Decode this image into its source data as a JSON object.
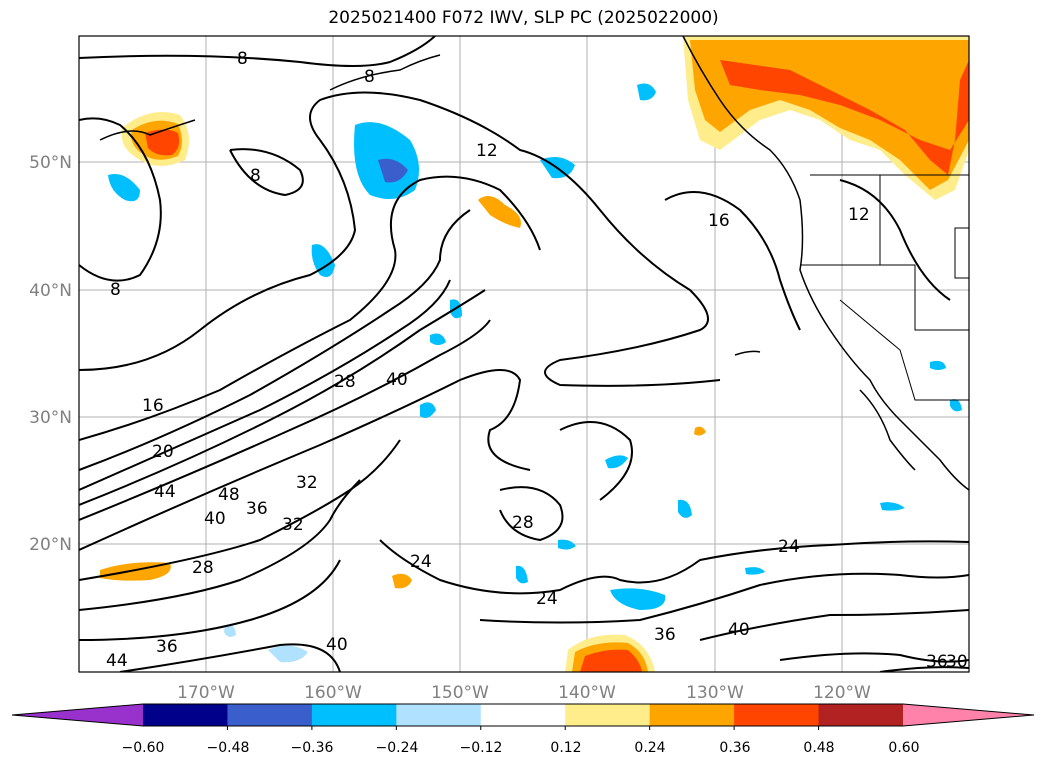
{
  "title": "2025021400 F072 IWV, SLP PC (2025022000)",
  "map": {
    "lon_ticks": [
      "170°W",
      "160°W",
      "150°W",
      "140°W",
      "130°W",
      "120°W"
    ],
    "lat_ticks": [
      "50°N",
      "40°N",
      "30°N",
      "20°N"
    ],
    "contour_labels": [
      "8",
      "8",
      "8",
      "8",
      "12",
      "16",
      "16",
      "20",
      "28",
      "40",
      "44",
      "48",
      "40",
      "36",
      "32",
      "32",
      "28",
      "28",
      "24",
      "24",
      "24",
      "36",
      "40",
      "36",
      "40",
      "44",
      "36",
      "30",
      "12"
    ]
  },
  "colorbar": {
    "ticks": [
      "−0.60",
      "−0.48",
      "−0.36",
      "−0.24",
      "−0.12",
      "0.12",
      "0.24",
      "0.36",
      "0.48",
      "0.60"
    ],
    "colors": [
      "#9932cc",
      "#00008b",
      "#3a5fcd",
      "#00bfff",
      "#b0e2ff",
      "#ffffff",
      "#ffec8b",
      "#ffa500",
      "#ff4500",
      "#b22222",
      "#ff82ab"
    ]
  }
}
